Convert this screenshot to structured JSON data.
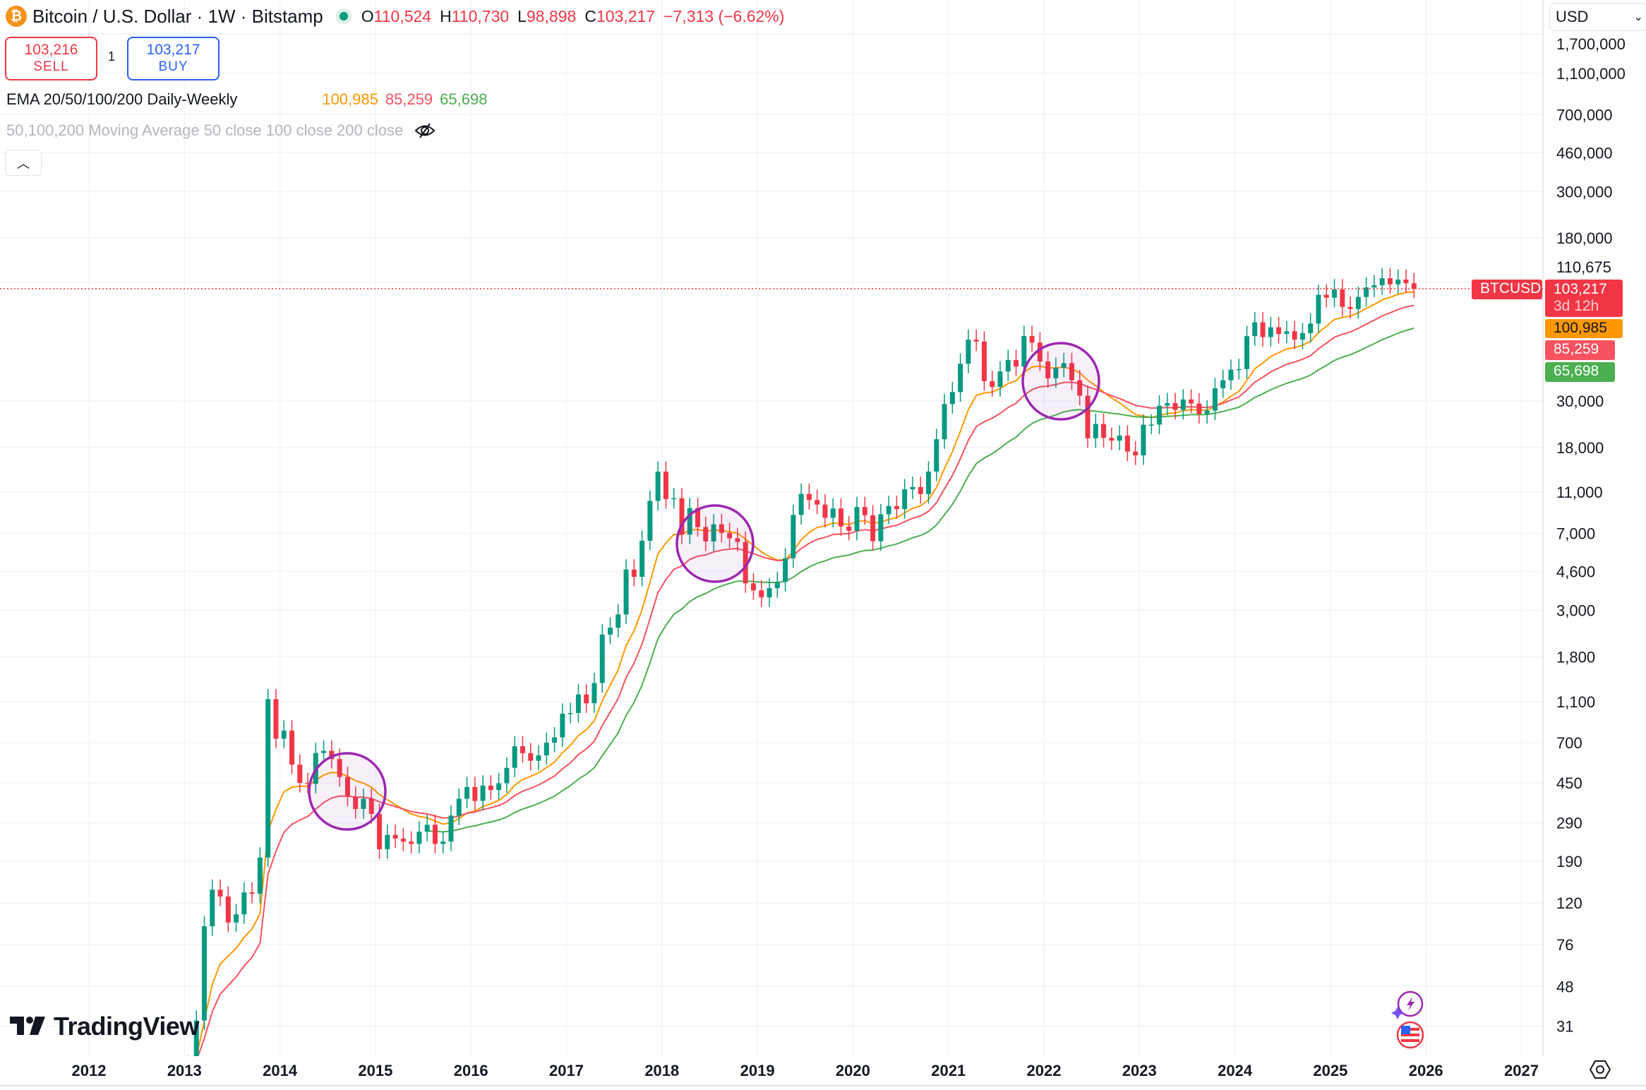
{
  "header": {
    "symbol_icon": "bitcoin-icon",
    "title": "Bitcoin / U.S. Dollar · 1W · Bitstamp",
    "market_status": "open",
    "ohlc": {
      "o_label": "O",
      "o": "110,524",
      "h_label": "H",
      "h": "110,730",
      "l_label": "L",
      "l": "98,898",
      "c_label": "C",
      "c": "103,217",
      "change": "−7,313 (−6.62%)"
    }
  },
  "trade": {
    "sell_price": "103,216",
    "sell_label": "SELL",
    "spread": "1",
    "buy_price": "103,217",
    "buy_label": "BUY"
  },
  "indicators": [
    {
      "name": "EMA 20/50/100/200 Daily-Weekly",
      "values": [
        "100,985",
        "85,259",
        "65,698"
      ]
    },
    {
      "name": "50,100,200 Moving Average 50 close 100 close 200 close",
      "hidden": true,
      "icon": "eye-off-icon"
    }
  ],
  "currency": "USD",
  "price_tags": {
    "symbol": "BTCUSD",
    "price": "103,217",
    "countdown": "3d 12h",
    "ema1": "100,985",
    "ema2": "85,259",
    "ema3": "65,698"
  },
  "logo": "TradingView",
  "colors": {
    "up": "#089981",
    "down": "#f23645",
    "ema_fast": "#ff9800",
    "ema_mid": "#f7525f",
    "ema_slow": "#4caf50",
    "annotation": "#9c27b0"
  },
  "chart_data": {
    "type": "candlestick",
    "scale": "log",
    "grid": true,
    "y_ticks": [
      "1,700,000",
      "1,100,000",
      "700,000",
      "460,000",
      "300,000",
      "180,000",
      "110,675",
      "30,000",
      "18,000",
      "11,000",
      "7,000",
      "4,600",
      "3,000",
      "1,800",
      "1,100",
      "700",
      "450",
      "290",
      "190",
      "120",
      "76",
      "48",
      "31"
    ],
    "x_ticks": [
      "2012",
      "2013",
      "2014",
      "2015",
      "2016",
      "2017",
      "2018",
      "2019",
      "2020",
      "2021",
      "2022",
      "2023",
      "2024",
      "2025",
      "2026",
      "2027"
    ],
    "last_price": 103217,
    "start": "2013-01",
    "monthly_close": [
      20,
      33,
      93,
      139,
      129,
      97,
      106,
      135,
      133,
      198,
      1130,
      732,
      800,
      550,
      450,
      445,
      625,
      640,
      585,
      480,
      387,
      338,
      378,
      320,
      217,
      254,
      244,
      236,
      230,
      263,
      284,
      230,
      236,
      314,
      378,
      430,
      369,
      437,
      416,
      448,
      531,
      673,
      624,
      574,
      609,
      700,
      742,
      963,
      970,
      1190,
      1080,
      1350,
      2300,
      2480,
      2870,
      4700,
      4340,
      6450,
      10000,
      13800,
      10200,
      10300,
      6900,
      9240,
      7500,
      6400,
      7730,
      7030,
      6630,
      6370,
      4040,
      3740,
      3460,
      3830,
      4100,
      5320,
      8570,
      10800,
      10100,
      9600,
      8300,
      9200,
      7550,
      7200,
      9350,
      8540,
      6420,
      8630,
      9450,
      9140,
      11350,
      11650,
      10780,
      13800,
      19700,
      29000,
      33100,
      45200,
      58900,
      57700,
      37300,
      35000,
      41500,
      47100,
      43800,
      61300,
      57000,
      46300,
      38500,
      43200,
      45500,
      37700,
      31800,
      19900,
      23300,
      20000,
      19400,
      20500,
      17200,
      16500,
      23100,
      23150,
      28500,
      29300,
      27200,
      30500,
      29200,
      26000,
      27000,
      34500,
      37700,
      42300,
      42600,
      61200,
      71300,
      60600,
      67500,
      62700,
      64600,
      58900,
      63300,
      70300,
      96400,
      93400,
      102400,
      84400,
      82500,
      94200,
      104600,
      107100,
      115700,
      108200,
      114000,
      109500,
      103217
    ],
    "ema_series": [
      {
        "name": "EMA 50",
        "period_weeks": 50,
        "last": 100985
      },
      {
        "name": "EMA 100",
        "period_weeks": 100,
        "last": 85259
      },
      {
        "name": "EMA 200",
        "period_weeks": 200,
        "last": 65698
      }
    ]
  }
}
